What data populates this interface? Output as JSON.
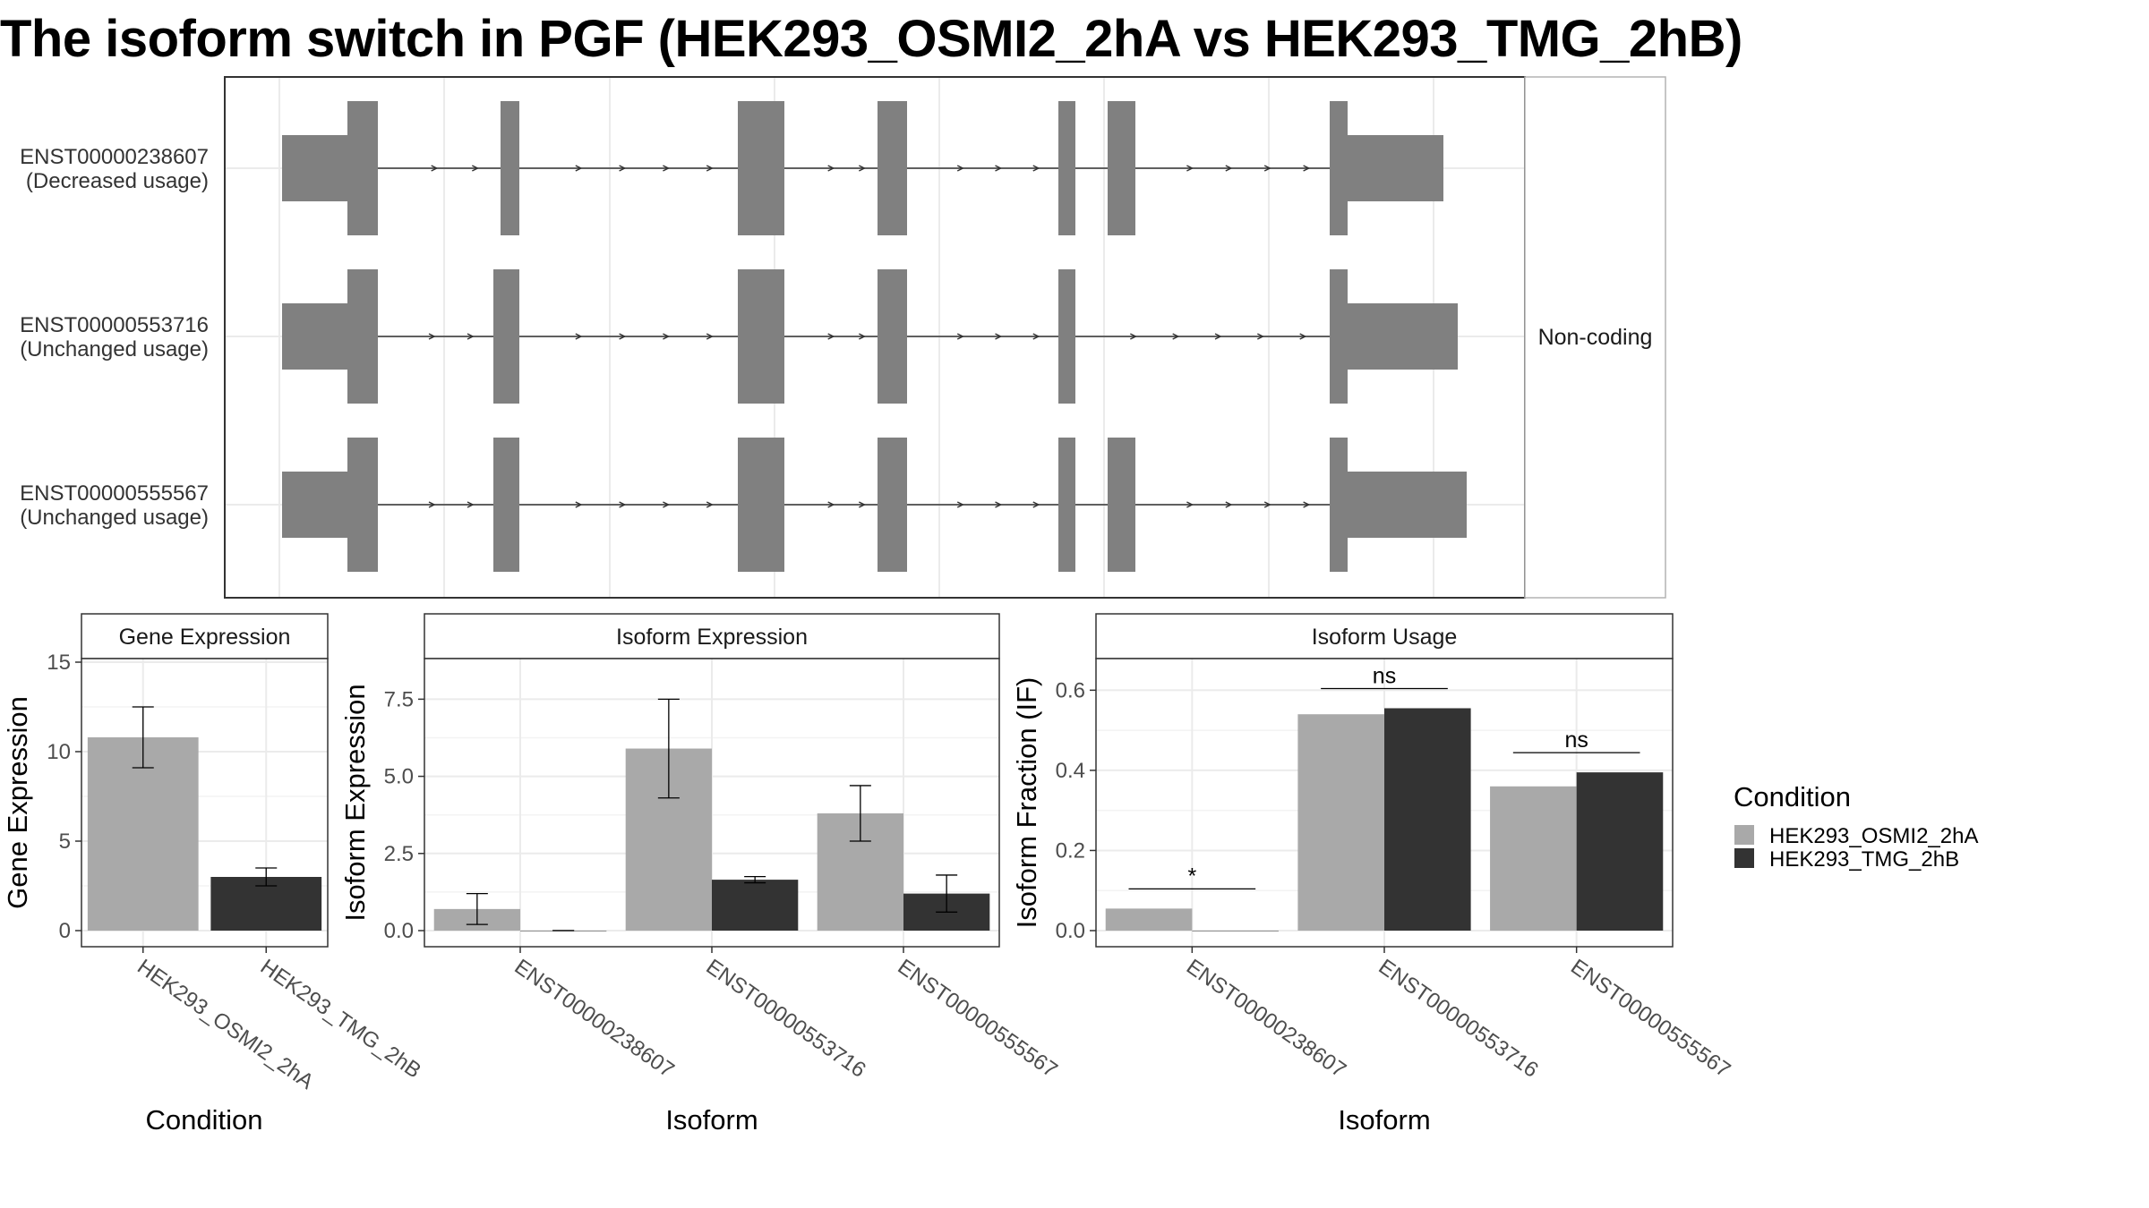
{
  "title": "The isoform switch in PGF (HEK293_OSMI2_2hA vs HEK293_TMG_2hB)",
  "colors": {
    "condition_a": "#a9a9a9",
    "condition_b": "#333333",
    "exon": "#808080",
    "grid": "#ebebeb",
    "panel_border": "#333333"
  },
  "chart_data": [
    {
      "type": "gene-structure",
      "facet_label": "Non-coding",
      "isoforms": [
        {
          "id": "ENST00000238607",
          "note": "(Decreased usage)"
        },
        {
          "id": "ENST00000553716",
          "note": "(Unchanged usage)"
        },
        {
          "id": "ENST00000555567",
          "note": "(Unchanged usage)"
        }
      ]
    },
    {
      "type": "bar",
      "title": "Gene Expression",
      "xlabel": "Condition",
      "ylabel": "Gene Expression",
      "ylim": [
        0,
        15
      ],
      "yticks": [
        0,
        5,
        10,
        15
      ],
      "categories": [
        "HEK293_OSMI2_2hA",
        "HEK293_TMG_2hB"
      ],
      "values": [
        10.8,
        3.0
      ],
      "errors": [
        [
          9.1,
          12.5
        ],
        [
          2.5,
          3.5
        ]
      ]
    },
    {
      "type": "bar",
      "title": "Isoform Expression",
      "xlabel": "Isoform",
      "ylabel": "Isoform Expression",
      "ylim": [
        0,
        8.7
      ],
      "yticks": [
        "0.0",
        "2.5",
        "5.0",
        "7.5"
      ],
      "categories": [
        "ENST00000238607",
        "ENST00000553716",
        "ENST00000555567"
      ],
      "series": [
        {
          "name": "HEK293_OSMI2_2hA",
          "values": [
            0.7,
            5.9,
            3.8
          ],
          "errors": [
            [
              0.2,
              1.2
            ],
            [
              4.3,
              7.5
            ],
            [
              2.9,
              4.7
            ]
          ]
        },
        {
          "name": "HEK293_TMG_2hB",
          "values": [
            0.0,
            1.65,
            1.2
          ],
          "errors": [
            [
              0.0,
              0.0
            ],
            [
              1.55,
              1.75
            ],
            [
              0.6,
              1.8
            ]
          ]
        }
      ]
    },
    {
      "type": "bar",
      "title": "Isoform Usage",
      "xlabel": "Isoform",
      "ylabel": "Isoform Fraction (IF)",
      "ylim": [
        0,
        0.67
      ],
      "yticks": [
        "0.0",
        "0.2",
        "0.4",
        "0.6"
      ],
      "categories": [
        "ENST00000238607",
        "ENST00000553716",
        "ENST00000555567"
      ],
      "series": [
        {
          "name": "HEK293_OSMI2_2hA",
          "values": [
            0.055,
            0.54,
            0.36
          ]
        },
        {
          "name": "HEK293_TMG_2hB",
          "values": [
            0.0,
            0.555,
            0.395
          ]
        }
      ],
      "significance": [
        "*",
        "ns",
        "ns"
      ]
    }
  ],
  "legend": {
    "title": "Condition",
    "entries": [
      "HEK293_OSMI2_2hA",
      "HEK293_TMG_2hB"
    ]
  }
}
